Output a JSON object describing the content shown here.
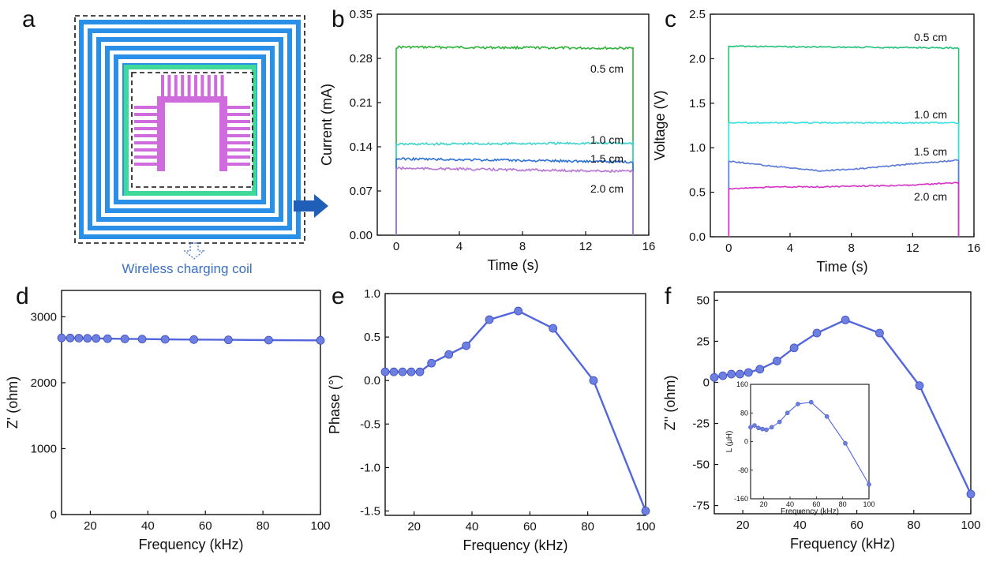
{
  "panel_labels": [
    "a",
    "b",
    "c",
    "d",
    "e",
    "f"
  ],
  "coil": {
    "caption": "Wireless charging coil",
    "coil_color": "#2a8fe6",
    "inner_color": "#3fd99a",
    "sensor_color": "#cf6bdc"
  },
  "colors": {
    "axis": "#111111",
    "marker": "#6d7fe0",
    "line": "#5366dc",
    "arrow": "#1f5fb8"
  },
  "chart_data": [
    {
      "id": "b",
      "type": "line",
      "title": "",
      "xlabel": "Time (s)",
      "ylabel": "Current (mA)",
      "xlim": [
        -1.2,
        16
      ],
      "ylim": [
        0,
        0.35
      ],
      "xticks": [
        0,
        4,
        8,
        12,
        16
      ],
      "yticks": [
        0.0,
        0.07,
        0.14,
        0.21,
        0.28,
        0.35
      ],
      "ytick_labels": [
        "0.00",
        "0.07",
        "0.14",
        "0.21",
        "0.28",
        "0.35"
      ],
      "series": [
        {
          "name": "0.5 cm",
          "color": "#2fb33a",
          "x": [
            0,
            15
          ],
          "y": [
            0.298,
            0.296
          ],
          "base": 0
        },
        {
          "name": "1.0 cm",
          "color": "#3fd4cc",
          "x": [
            0,
            15
          ],
          "y": [
            0.144,
            0.146
          ],
          "base": 0
        },
        {
          "name": "1.5 cm",
          "color": "#2f72d6",
          "x": [
            0,
            15
          ],
          "y": [
            0.121,
            0.116
          ],
          "base": 0
        },
        {
          "name": "2.0 cm",
          "color": "#b776d6",
          "x": [
            0,
            15
          ],
          "y": [
            0.106,
            0.101
          ],
          "base": 0
        }
      ]
    },
    {
      "id": "c",
      "type": "line",
      "title": "",
      "xlabel": "Time (s)",
      "ylabel": "Voltage (V)",
      "xlim": [
        -1.2,
        16
      ],
      "ylim": [
        0,
        2.5
      ],
      "xticks": [
        0,
        4,
        8,
        12,
        16
      ],
      "yticks": [
        0.0,
        0.5,
        1.0,
        1.5,
        2.0,
        2.5
      ],
      "ytick_labels": [
        "0.0",
        "0.5",
        "1.0",
        "1.5",
        "2.0",
        "2.5"
      ],
      "series": [
        {
          "name": "0.5 cm",
          "color": "#22c27a",
          "x": [
            0,
            15
          ],
          "y": [
            2.14,
            2.12
          ],
          "base": 0
        },
        {
          "name": "1.0 cm",
          "color": "#3ae0e0",
          "x": [
            0,
            15
          ],
          "y": [
            1.28,
            1.28
          ],
          "base": 0
        },
        {
          "name": "1.5 cm",
          "color": "#5a79d8",
          "x": [
            0,
            3,
            6,
            9,
            12,
            15
          ],
          "y": [
            0.85,
            0.79,
            0.74,
            0.77,
            0.82,
            0.86
          ],
          "base": 0
        },
        {
          "name": "2.0 cm",
          "color": "#d632c6",
          "x": [
            0,
            3,
            6,
            9,
            12,
            15
          ],
          "y": [
            0.54,
            0.56,
            0.56,
            0.57,
            0.58,
            0.61
          ],
          "base": 0
        }
      ]
    },
    {
      "id": "d",
      "type": "line",
      "title": "",
      "xlabel": "Frequency (kHz)",
      "ylabel": "Z' (ohm)",
      "xlim": [
        10,
        100
      ],
      "ylim": [
        0,
        3400
      ],
      "xticks": [
        20,
        40,
        60,
        80,
        100
      ],
      "yticks": [
        0,
        1000,
        2000,
        3000
      ],
      "ytick_labels": [
        "0",
        "1000",
        "2000",
        "3000"
      ],
      "series": [
        {
          "x": [
            10,
            13,
            16,
            19,
            22,
            26,
            32,
            38,
            46,
            56,
            68,
            82,
            100
          ],
          "y": [
            2680,
            2678,
            2676,
            2674,
            2672,
            2668,
            2665,
            2662,
            2658,
            2654,
            2650,
            2646,
            2642
          ]
        }
      ]
    },
    {
      "id": "e",
      "type": "line",
      "title": "",
      "xlabel": "Frequency (kHz)",
      "ylabel": "Phase (°)",
      "xlim": [
        10,
        100
      ],
      "ylim": [
        -1.55,
        1.0
      ],
      "xticks": [
        20,
        40,
        60,
        80,
        100
      ],
      "yticks": [
        -1.5,
        -1.0,
        -0.5,
        0.0,
        0.5,
        1.0
      ],
      "ytick_labels": [
        "-1.5",
        "-1.0",
        "-0.5",
        "0.0",
        "0.5",
        "1.0"
      ],
      "series": [
        {
          "x": [
            10,
            13,
            16,
            19,
            22,
            26,
            32,
            38,
            46,
            56,
            68,
            82,
            100
          ],
          "y": [
            0.1,
            0.1,
            0.1,
            0.1,
            0.1,
            0.2,
            0.3,
            0.4,
            0.7,
            0.8,
            0.6,
            0.0,
            -1.5
          ]
        }
      ]
    },
    {
      "id": "f",
      "type": "line",
      "title": "",
      "xlabel": "Frequency (kHz)",
      "ylabel": "Z'' (ohm)",
      "xlim": [
        10,
        100
      ],
      "ylim": [
        -80,
        55
      ],
      "xticks": [
        20,
        40,
        60,
        80,
        100
      ],
      "yticks": [
        -75,
        -50,
        -25,
        0,
        25,
        50
      ],
      "ytick_labels": [
        "-75",
        "-50",
        "-25",
        "0",
        "25",
        "50"
      ],
      "series": [
        {
          "x": [
            10,
            13,
            16,
            19,
            22,
            26,
            32,
            38,
            46,
            56,
            68,
            82,
            100
          ],
          "y": [
            3,
            4,
            5,
            5,
            6,
            8,
            13,
            21,
            30,
            38,
            30,
            -2,
            -68
          ]
        }
      ],
      "inset": {
        "type": "line",
        "xlabel": "Frequency (kHz)",
        "ylabel": "L (μH)",
        "xlim": [
          10,
          100
        ],
        "ylim": [
          -160,
          160
        ],
        "xticks": [
          20,
          40,
          60,
          80,
          100
        ],
        "yticks": [
          -160,
          -80,
          0,
          80,
          160
        ],
        "ytick_labels": [
          "-160",
          "-80",
          "0",
          "80",
          "160"
        ],
        "series": [
          {
            "x": [
              10,
              13,
              16,
              19,
              22,
              26,
              32,
              38,
              46,
              56,
              68,
              82,
              100
            ],
            "y": [
              40,
              45,
              38,
              35,
              33,
              40,
              55,
              80,
              105,
              110,
              70,
              -5,
              -120
            ]
          }
        ]
      }
    }
  ]
}
